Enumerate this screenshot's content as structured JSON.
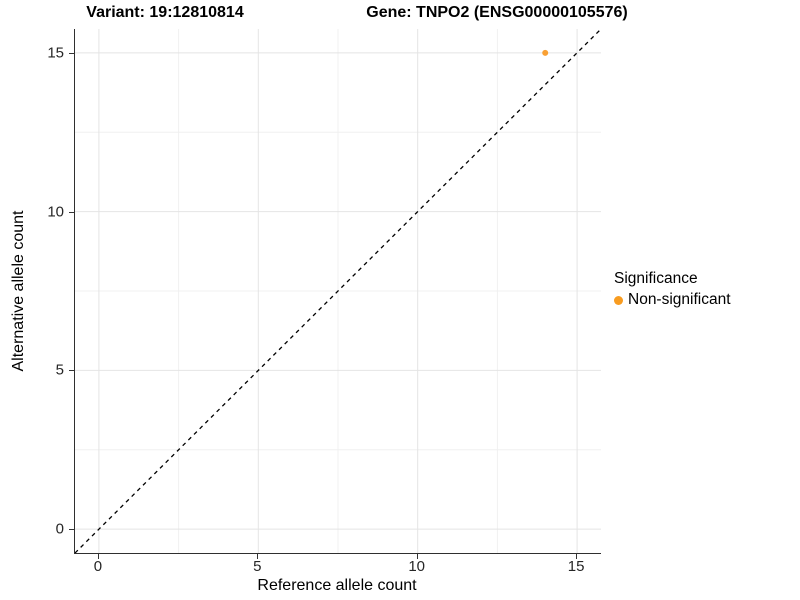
{
  "figure": {
    "title_left": "Variant: 19:12810814",
    "title_right": "Gene: TNPO2 (ENSG00000105576)"
  },
  "chart_data": {
    "type": "scatter",
    "title": "Variant: 19:12810814   Gene: TNPO2 (ENSG00000105576)",
    "xlabel": "Reference allele count",
    "ylabel": "Alternative allele count",
    "xlim": [
      -0.75,
      15.75
    ],
    "ylim": [
      -0.75,
      15.75
    ],
    "x_ticks": [
      0,
      5,
      10,
      15
    ],
    "y_ticks": [
      0,
      5,
      10,
      15
    ],
    "x_minor_ticks": [
      2.5,
      7.5,
      12.5
    ],
    "y_minor_ticks": [
      2.5,
      7.5,
      12.5
    ],
    "grid": true,
    "points": [
      {
        "x": 14,
        "y": 15,
        "series": "Non-significant",
        "color": "#F9A033",
        "radius": 3
      }
    ],
    "reference_line": {
      "type": "identity-abline",
      "from": [
        -0.75,
        -0.75
      ],
      "to": [
        15.75,
        15.75
      ],
      "style": "dashed",
      "color": "#000000"
    },
    "legend": {
      "title": "Significance",
      "position": "right",
      "items": [
        {
          "label": "Non-significant",
          "color": "#F89C20",
          "marker": "circle"
        }
      ]
    }
  },
  "colors": {
    "background": "#ffffff",
    "grid_major": "#e4e4e4",
    "grid_minor": "#f0f0f0",
    "axis_line": "#2f2f2f",
    "tick_text": "#262626",
    "point_orange": "#F9A033"
  }
}
